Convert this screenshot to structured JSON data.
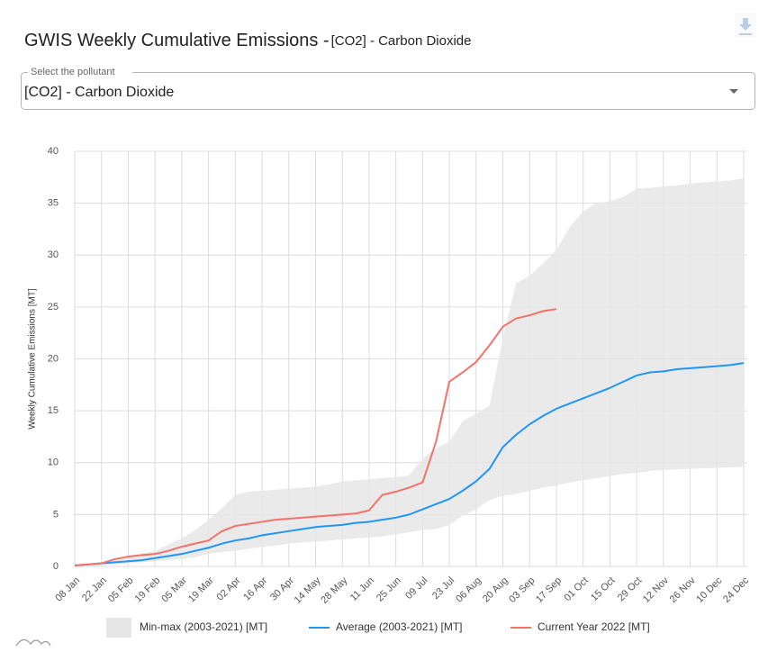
{
  "header": {
    "title": "GWIS Weekly Cumulative Emissions -",
    "subtitle": "[CO2] - Carbon Dioxide"
  },
  "select": {
    "label": "Select the pollutant",
    "value": "[CO2] - Carbon Dioxide"
  },
  "chart_data": {
    "type": "line",
    "ylabel": "Weekly Cumulative Emissions [MT]",
    "categories": [
      "08 Jan",
      null,
      "22 Jan",
      null,
      "05 Feb",
      null,
      "19 Feb",
      null,
      "05 Mar",
      null,
      "19 Mar",
      null,
      "02 Apr",
      null,
      "16 Apr",
      null,
      "30 Apr",
      null,
      "14 May",
      null,
      "28 May",
      null,
      "11 Jun",
      null,
      "25 Jun",
      null,
      "09 Jul",
      null,
      "23 Jul",
      null,
      "06 Aug",
      null,
      "20 Aug",
      null,
      "03 Sep",
      null,
      "17 Sep",
      null,
      "01 Oct",
      null,
      "15 Oct",
      null,
      "29 Oct",
      null,
      "12 Nov",
      null,
      "26 Nov",
      null,
      "10 Dec",
      null,
      "24 Dec"
    ],
    "ylim": [
      0,
      40
    ],
    "yticks": [
      0,
      5,
      10,
      15,
      20,
      25,
      30,
      35,
      40
    ],
    "grid": true,
    "legend": "bottom",
    "series": [
      {
        "name": "Min-max (2003-2021) [MT]",
        "color": "#e6e6e6",
        "type": "range",
        "low": [
          0,
          0,
          0.1,
          0.2,
          0.3,
          0.4,
          0.5,
          0.6,
          0.7,
          0.9,
          1.2,
          1.4,
          1.5,
          1.7,
          1.9,
          2.0,
          2.2,
          2.3,
          2.4,
          2.5,
          2.6,
          2.7,
          2.8,
          2.9,
          3.1,
          3.3,
          3.5,
          3.6,
          4.0,
          4.9,
          5.5,
          6.4,
          6.8,
          7.0,
          7.3,
          7.6,
          7.8,
          8.1,
          8.3,
          8.5,
          8.7,
          8.9,
          9.0,
          9.2,
          9.3,
          9.35,
          9.4,
          9.45,
          9.5,
          9.55,
          9.6
        ],
        "high": [
          0.1,
          0.2,
          0.3,
          0.6,
          0.9,
          1.2,
          1.5,
          2.1,
          2.7,
          3.5,
          4.5,
          5.6,
          6.9,
          7.2,
          7.3,
          7.4,
          7.5,
          7.6,
          7.7,
          7.9,
          8.2,
          8.3,
          8.4,
          8.5,
          8.6,
          8.8,
          10.4,
          11.4,
          12,
          14,
          14.7,
          15.5,
          22,
          27.3,
          28,
          29.2,
          30.5,
          32.7,
          34.2,
          35,
          35.2,
          35.6,
          36.4,
          36.5,
          36.6,
          36.7,
          36.9,
          37,
          37.1,
          37.2,
          37.4
        ]
      },
      {
        "name": "Average (2003-2021) [MT]",
        "color": "#2196f3",
        "values": [
          0.1,
          0.2,
          0.3,
          0.4,
          0.5,
          0.6,
          0.8,
          1.0,
          1.2,
          1.5,
          1.8,
          2.2,
          2.5,
          2.7,
          3.0,
          3.2,
          3.4,
          3.6,
          3.8,
          3.9,
          4.0,
          4.2,
          4.3,
          4.5,
          4.7,
          5.0,
          5.5,
          6.0,
          6.5,
          7.3,
          8.2,
          9.4,
          11.5,
          12.7,
          13.7,
          14.5,
          15.2,
          15.7,
          16.2,
          16.7,
          17.2,
          17.8,
          18.4,
          18.7,
          18.8,
          19.0,
          19.1,
          19.2,
          19.3,
          19.4,
          19.6
        ]
      },
      {
        "name": "Current Year 2022 [MT]",
        "color": "#f4726a",
        "values": [
          0.1,
          0.2,
          0.3,
          0.7,
          0.95,
          1.1,
          1.2,
          1.5,
          1.9,
          2.2,
          2.5,
          3.4,
          3.9,
          4.1,
          4.3,
          4.5,
          4.6,
          4.7,
          4.8,
          4.9,
          5.0,
          5.1,
          5.4,
          6.9,
          7.2,
          7.6,
          8.1,
          12.0,
          17.8,
          18.7,
          19.7,
          21.3,
          23.1,
          23.9,
          24.2,
          24.6,
          24.8,
          null,
          null,
          null,
          null,
          null,
          null,
          null,
          null,
          null,
          null,
          null,
          null,
          null,
          null
        ]
      }
    ]
  }
}
